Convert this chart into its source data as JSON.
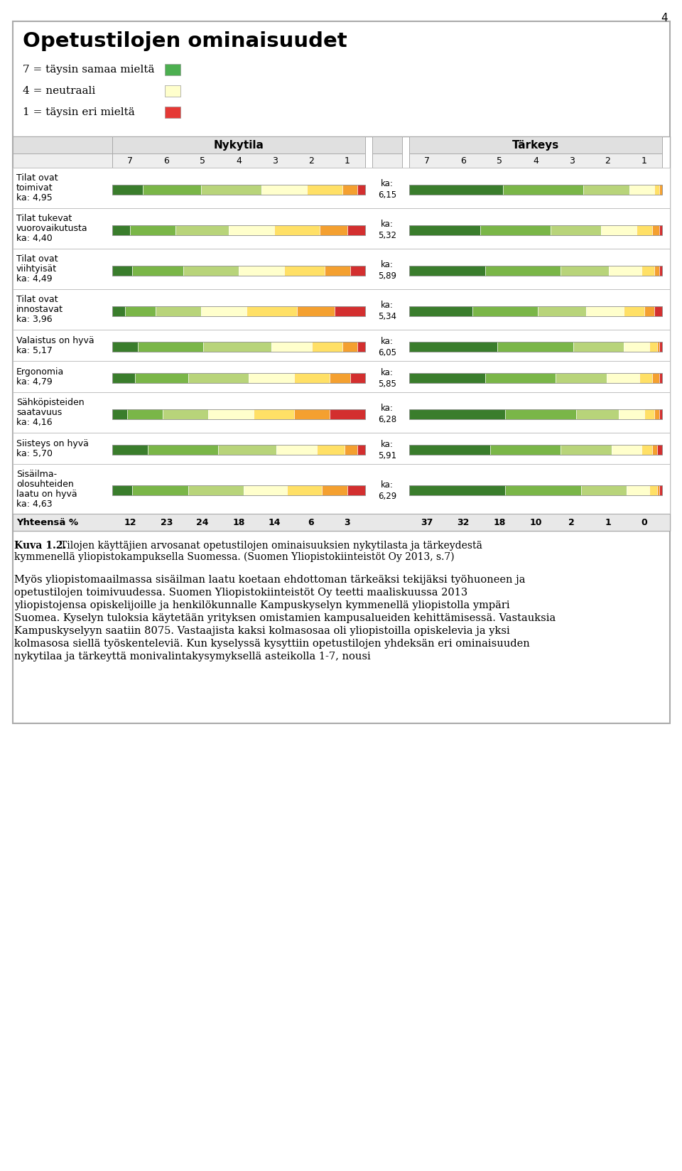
{
  "title": "Opetustilojen ominaisuudet",
  "legend_items": [
    {
      "label": "7 = täysin samaa mieltä",
      "color": "#4caf50"
    },
    {
      "label": "4 = neutraali",
      "color": "#ffffcc"
    },
    {
      "label": "1 = täysin eri mieltä",
      "color": "#e53935"
    }
  ],
  "nykytila_header": "Nykytila",
  "tarkeys_header": "Tärkeys",
  "col_labels": [
    "7",
    "6",
    "5",
    "4",
    "3",
    "2",
    "1"
  ],
  "colors": {
    "7": "#3a7d2c",
    "6": "#7ab648",
    "5": "#b8d47a",
    "4": "#ffffcc",
    "3": "#ffe066",
    "2": "#f4a030",
    "1": "#d32f2f"
  },
  "rows": [
    {
      "label_lines": [
        "Tilat ovat",
        "toimivat",
        "ka: 4,95"
      ],
      "nykytila_ka": "ka:\n6,15",
      "nykytila": [
        12,
        23,
        24,
        18,
        14,
        6,
        3
      ],
      "tarkeys": [
        37,
        32,
        18,
        10,
        2,
        1,
        0
      ],
      "n_lines": 3
    },
    {
      "label_lines": [
        "Tilat tukevat",
        "vuorovaikutusta",
        "ka: 4,40"
      ],
      "nykytila_ka": "ka:\n5,32",
      "nykytila": [
        7,
        18,
        21,
        18,
        18,
        11,
        7
      ],
      "tarkeys": [
        28,
        28,
        20,
        14,
        6,
        3,
        1
      ],
      "n_lines": 3
    },
    {
      "label_lines": [
        "Tilat ovat",
        "viihtyisät",
        "ka: 4,49"
      ],
      "nykytila_ka": "ka:\n5,89",
      "nykytila": [
        8,
        20,
        22,
        18,
        16,
        10,
        6
      ],
      "tarkeys": [
        30,
        30,
        19,
        13,
        5,
        2,
        1
      ],
      "n_lines": 3
    },
    {
      "label_lines": [
        "Tilat ovat",
        "innostavat",
        "ka: 3,96"
      ],
      "nykytila_ka": "ka:\n5,34",
      "nykytila": [
        5,
        12,
        18,
        18,
        20,
        15,
        12
      ],
      "tarkeys": [
        25,
        26,
        19,
        15,
        8,
        4,
        3
      ],
      "n_lines": 3
    },
    {
      "label_lines": [
        "Valaistus on hyvä",
        "ka: 5,17"
      ],
      "nykytila_ka": "ka:\n6,05",
      "nykytila": [
        10,
        26,
        27,
        16,
        12,
        6,
        3
      ],
      "tarkeys": [
        35,
        30,
        20,
        10,
        3,
        1,
        1
      ],
      "n_lines": 2
    },
    {
      "label_lines": [
        "Ergonomia",
        "ka: 4,79"
      ],
      "nykytila_ka": "ka:\n5,85",
      "nykytila": [
        9,
        21,
        24,
        18,
        14,
        8,
        6
      ],
      "tarkeys": [
        30,
        28,
        20,
        13,
        5,
        3,
        1
      ],
      "n_lines": 2
    },
    {
      "label_lines": [
        "Sähköpisteiden",
        "saatavuus",
        "ka: 4,16"
      ],
      "nykytila_ka": "ka:\n6,28",
      "nykytila": [
        6,
        14,
        18,
        18,
        16,
        14,
        14
      ],
      "tarkeys": [
        38,
        28,
        17,
        10,
        4,
        2,
        1
      ],
      "n_lines": 3
    },
    {
      "label_lines": [
        "Siisteys on hyvä",
        "ka: 5,70"
      ],
      "nykytila_ka": "ka:\n5,91",
      "nykytila": [
        14,
        28,
        23,
        16,
        11,
        5,
        3
      ],
      "tarkeys": [
        32,
        28,
        20,
        12,
        4,
        2,
        2
      ],
      "n_lines": 2
    },
    {
      "label_lines": [
        "Sisäilma-",
        "olosuhteiden",
        "laatu on hyvä",
        "ka: 4,63"
      ],
      "nykytila_ka": "ka:\n6,29",
      "nykytila": [
        8,
        22,
        22,
        17,
        14,
        10,
        7
      ],
      "tarkeys": [
        38,
        30,
        18,
        9,
        3,
        1,
        1
      ],
      "n_lines": 4
    }
  ],
  "footer_row": {
    "label": "Yhteensä %",
    "nykytila": [
      12,
      23,
      24,
      18,
      14,
      6,
      3
    ],
    "tarkeys": [
      37,
      32,
      18,
      10,
      2,
      1,
      0
    ]
  },
  "caption": "Kuva 1.2. Tilojen käyttäjien arvosanat opetustilojen ominaisuuksien nykytilasta ja tärkeydestä kymmenellä yliopistokampuksella Suomessa. (Suomen Yliopistokiinteistöt Oy 2013, s.7)",
  "body_text": "Myös yliopistomaailmassa sisäilman laatu koetaan ehdottoman tärkeäksi tekijäksi työhuoneen ja opetustilojen toimivuudessa. Suomen Yliopistokiinteistöt Oy teetti maaliskuussa 2013 yliopistojensa opiskelijoille ja henkilökunnalle Kampuskyselyn kymmenellä yliopistolla ympäri Suomea. Kyselyn tuloksia käytetään yrityksen omistamien kampusalueiden kehittämisessä. Vastauksia Kampuskyselyyn saatiin 8075. Vastaajista kaksi kolmasosaa oli yliopistoilla opiskelevia ja yksi kolmasosa siellä työskenteleviä. Kun kyselyssä kysyttiin opetustilojen yhdeksän eri ominaisuuden nykytilaa ja tärkeyttä monivalintakysymyksellä asteikolla 1-7, nousi",
  "page_number": "4"
}
